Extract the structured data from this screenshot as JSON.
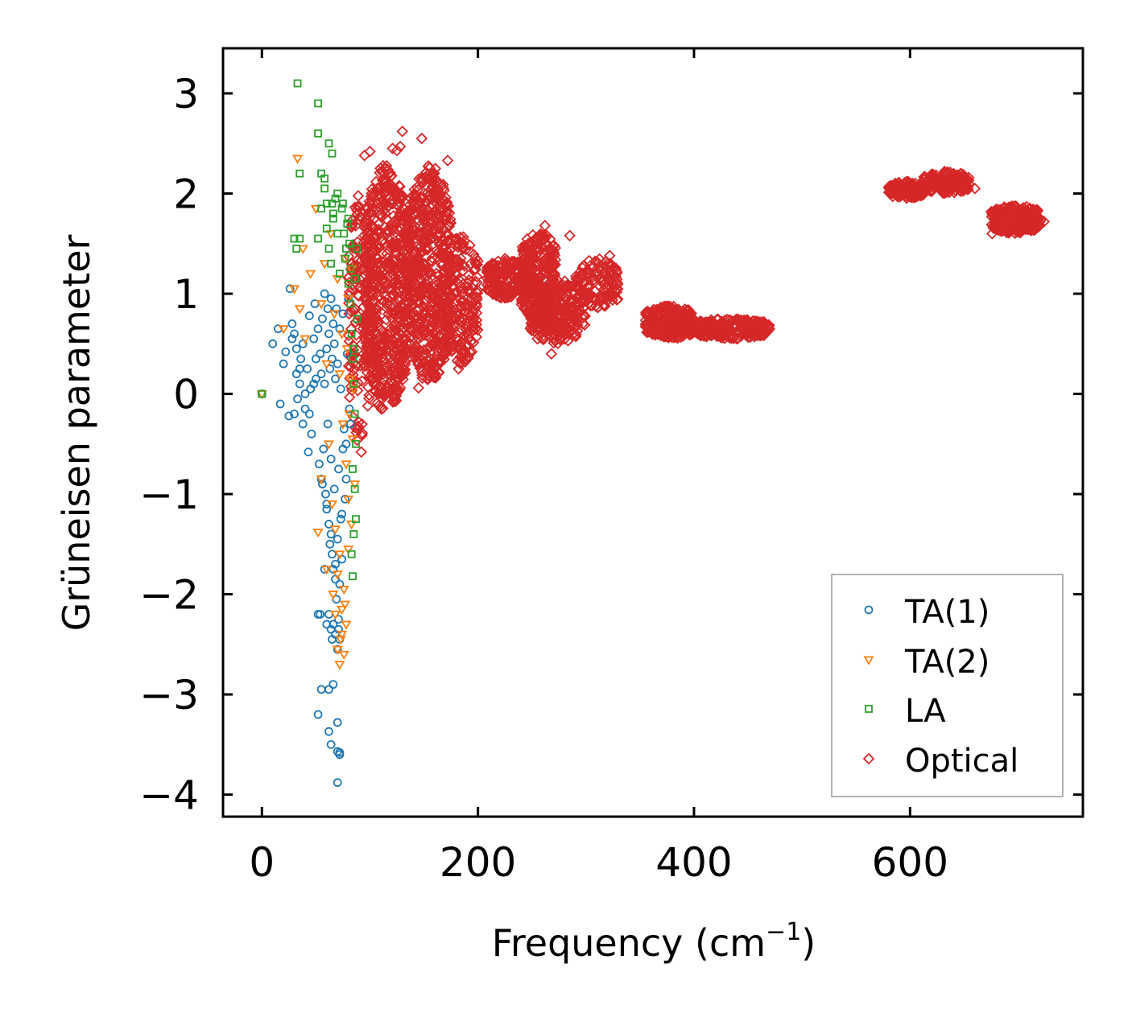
{
  "chart_data": {
    "type": "scatter",
    "title": "",
    "xlabel": "Frequency (cm",
    "xlabel_exponent": "−1",
    "xlabel_close": ")",
    "ylabel": "Grüneisen parameter",
    "xlim": [
      -36,
      760
    ],
    "ylim": [
      -4.22,
      3.45
    ],
    "xticks": [
      0,
      200,
      400,
      600
    ],
    "xtick_labels": [
      "0",
      "200",
      "400",
      "600"
    ],
    "yticks": [
      3,
      2,
      1,
      0,
      -1,
      -2,
      -3,
      -4
    ],
    "ytick_labels": [
      "3",
      "2",
      "1",
      "0",
      "−1",
      "−2",
      "−3",
      "−4"
    ],
    "grid": false,
    "legend_position": "lower-right",
    "series": [
      {
        "name": "TA(1)",
        "marker": "circle",
        "color": "#1f77b4",
        "x": [
          0,
          10,
          15,
          17,
          20,
          22,
          25,
          26,
          28,
          30,
          30,
          32,
          33,
          35,
          36,
          38,
          38,
          40,
          42,
          43,
          44,
          45,
          46,
          48,
          49,
          50,
          52,
          53,
          54,
          55,
          55,
          56,
          57,
          58,
          58,
          59,
          60,
          60,
          61,
          61,
          62,
          62,
          63,
          63,
          64,
          64,
          65,
          65,
          66,
          66,
          67,
          67,
          68,
          68,
          69,
          69,
          70,
          70,
          71,
          71,
          72,
          72,
          73,
          73,
          74,
          75,
          75,
          76,
          77,
          78,
          79,
          80,
          81,
          52,
          54,
          58,
          60,
          62,
          64,
          65,
          66,
          68,
          70,
          71,
          72,
          55,
          62,
          70,
          72,
          62,
          64,
          70,
          72,
          52,
          66,
          70,
          28,
          32,
          35,
          40,
          44,
          48,
          50,
          56,
          60,
          64,
          68,
          74,
          78,
          82
        ],
        "y": [
          0.0,
          0.5,
          0.65,
          -0.1,
          0.3,
          0.42,
          -0.22,
          1.05,
          0.7,
          0.6,
          -0.2,
          0.2,
          -0.05,
          0.1,
          0.35,
          0.5,
          -0.3,
          -0.15,
          0.25,
          -0.58,
          0.78,
          0.05,
          -0.4,
          0.55,
          0.9,
          0.15,
          0.65,
          -0.7,
          0.4,
          -0.85,
          0.2,
          0.75,
          -0.55,
          1.0,
          0.1,
          -1.0,
          0.45,
          -1.15,
          0.85,
          -0.3,
          -1.3,
          0.6,
          0.25,
          -1.5,
          0.95,
          -0.65,
          -1.6,
          0.35,
          0.7,
          -1.75,
          -0.95,
          0.5,
          -1.85,
          0.15,
          0.85,
          -2.05,
          -1.45,
          0.3,
          -0.75,
          -2.25,
          0.65,
          -1.9,
          -1.25,
          0.05,
          -1.65,
          -0.55,
          0.8,
          -0.35,
          -1.05,
          -0.85,
          0.4,
          0.95,
          -0.15,
          -2.2,
          -2.2,
          -1.75,
          -2.3,
          -2.2,
          -2.35,
          -2.45,
          -2.3,
          -2.4,
          -2.55,
          -2.35,
          -2.45,
          -2.95,
          -2.95,
          -3.28,
          -3.6,
          -3.37,
          -3.5,
          -3.57,
          -3.58,
          -3.2,
          -2.9,
          -3.88,
          0.55,
          0.45,
          0.25,
          0.0,
          -0.2,
          0.1,
          0.35,
          -0.9,
          -1.1,
          -1.4,
          -1.7,
          -1.2,
          -0.5,
          -0.3
        ]
      },
      {
        "name": "TA(2)",
        "marker": "triangle-down",
        "color": "#ff7f0e",
        "x": [
          0,
          20,
          30,
          33,
          35,
          38,
          40,
          45,
          50,
          55,
          55,
          58,
          60,
          62,
          64,
          65,
          67,
          68,
          70,
          70,
          72,
          72,
          74,
          74,
          75,
          76,
          77,
          78,
          79,
          80,
          80,
          81,
          82,
          83,
          84,
          85,
          74,
          76,
          78,
          72,
          70,
          68,
          66,
          73,
          77,
          80,
          83,
          86,
          52,
          60
        ],
        "y": [
          0.0,
          0.65,
          1.05,
          2.35,
          0.85,
          1.45,
          0.55,
          1.2,
          1.85,
          0.9,
          -0.85,
          1.3,
          0.3,
          -0.5,
          1.6,
          -1.1,
          0.8,
          -1.35,
          1.15,
          -1.8,
          0.2,
          -1.6,
          -2.15,
          0.6,
          -0.3,
          -1.95,
          1.35,
          -0.7,
          0.45,
          -1.05,
          0.95,
          -0.2,
          0.15,
          1.25,
          -0.45,
          0.05,
          -2.4,
          -2.6,
          -2.3,
          -2.7,
          -2.55,
          -2.2,
          -2.0,
          -2.45,
          -2.1,
          -1.55,
          -1.3,
          -0.9,
          -1.38,
          -1.75
        ]
      },
      {
        "name": "LA",
        "marker": "square",
        "color": "#2ca02c",
        "x": [
          0,
          33,
          35,
          52,
          52,
          55,
          58,
          60,
          62,
          65,
          65,
          30,
          35,
          32,
          52,
          55,
          60,
          62,
          64,
          66,
          68,
          70,
          72,
          74,
          75,
          77,
          79,
          80,
          81,
          82,
          83,
          84,
          85,
          86,
          87,
          88,
          84,
          86,
          87,
          85,
          83,
          84,
          88,
          86,
          85,
          80,
          82,
          78,
          76,
          58,
          66,
          70
        ],
        "y": [
          0.0,
          3.1,
          2.2,
          2.9,
          2.6,
          2.2,
          2.15,
          1.9,
          2.5,
          1.9,
          2.4,
          1.55,
          1.55,
          1.45,
          1.55,
          1.85,
          1.65,
          1.45,
          1.3,
          1.75,
          1.95,
          1.6,
          1.2,
          1.85,
          1.9,
          1.35,
          1.7,
          1.1,
          1.5,
          0.9,
          0.6,
          0.35,
          0.1,
          -0.2,
          -0.5,
          0.75,
          -0.75,
          -0.95,
          -1.25,
          -1.4,
          -1.6,
          -1.82,
          1.45,
          1.15,
          0.45,
          1.75,
          1.25,
          1.45,
          1.6,
          2.05,
          1.8,
          2.0
        ]
      },
      {
        "name": "Optical",
        "marker": "diamond",
        "color": "#d62728",
        "clusters": [
          {
            "x_range": [
              80,
              100
            ],
            "y_range": [
              -0.5,
              2.0
            ],
            "count": 140
          },
          {
            "x_range": [
              95,
              135
            ],
            "y_range": [
              -0.2,
              2.3
            ],
            "count": 650
          },
          {
            "x_range": [
              135,
              175
            ],
            "y_range": [
              0.1,
              2.3
            ],
            "count": 600
          },
          {
            "x_range": [
              170,
              200
            ],
            "y_range": [
              0.3,
              1.6
            ],
            "count": 200
          },
          {
            "x_range": [
              208,
              245
            ],
            "y_range": [
              0.95,
              1.35
            ],
            "count": 220
          },
          {
            "x_range": [
              240,
              272
            ],
            "y_range": [
              0.7,
              1.65
            ],
            "count": 300
          },
          {
            "x_range": [
              248,
              300
            ],
            "y_range": [
              0.5,
              1.15
            ],
            "count": 300
          },
          {
            "x_range": [
              290,
              330
            ],
            "y_range": [
              0.85,
              1.35
            ],
            "count": 130
          },
          {
            "x_range": [
              355,
              400
            ],
            "y_range": [
              0.55,
              0.88
            ],
            "count": 260
          },
          {
            "x_range": [
              395,
              470
            ],
            "y_range": [
              0.55,
              0.75
            ],
            "count": 260
          },
          {
            "x_range": [
              580,
              612
            ],
            "y_range": [
              1.95,
              2.12
            ],
            "count": 130
          },
          {
            "x_range": [
              612,
              655
            ],
            "y_range": [
              2.0,
              2.22
            ],
            "count": 170
          },
          {
            "x_range": [
              675,
              722
            ],
            "y_range": [
              1.6,
              1.88
            ],
            "count": 220
          }
        ],
        "x": [
          130,
          125,
          148,
          158,
          172,
          128,
          121,
          184,
          145,
          158,
          225,
          262,
          285,
          322,
          460,
          268,
          255,
          282,
          95,
          100,
          120,
          150,
          182,
          92,
          98,
          632,
          660,
          676,
          706,
          724,
          582,
          640
        ],
        "y": [
          2.62,
          2.43,
          2.55,
          2.12,
          2.33,
          2.47,
          2.45,
          0.3,
          0.06,
          0.28,
          1.35,
          1.68,
          1.58,
          1.38,
          0.67,
          0.4,
          0.55,
          0.6,
          2.38,
          2.42,
          0.13,
          0.4,
          0.25,
          -0.58,
          -0.12,
          2.22,
          2.05,
          1.6,
          1.85,
          1.72,
          2.0,
          2.15
        ]
      }
    ]
  }
}
